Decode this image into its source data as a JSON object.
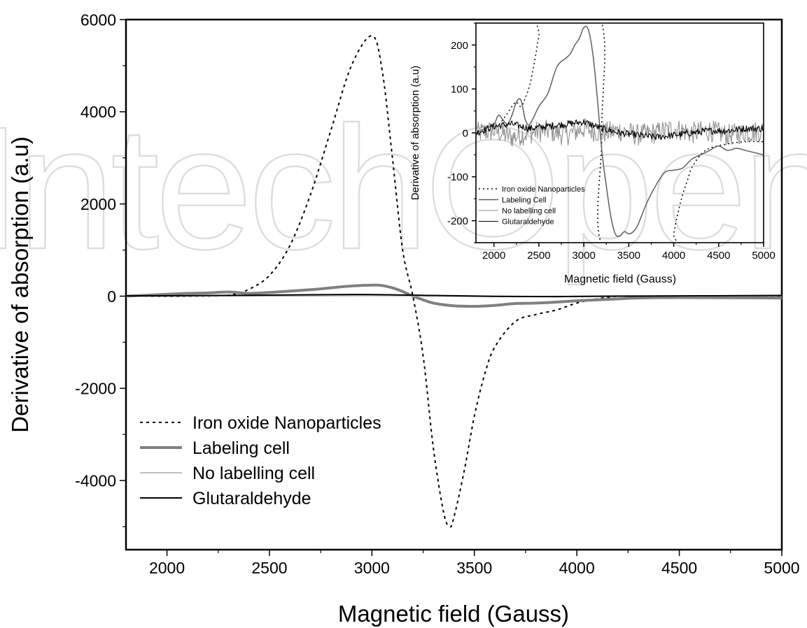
{
  "watermark": {
    "text": "IntechOpen"
  },
  "chart_data": [
    {
      "id": "main",
      "type": "line",
      "xlabel": "Magnetic field (Gauss)",
      "ylabel": "Derivative of absorption (a.u)",
      "xlim": [
        1800,
        5000
      ],
      "ylim": [
        -5500,
        6000
      ],
      "xticks": [
        2000,
        2500,
        3000,
        3500,
        4000,
        4500,
        5000
      ],
      "yticks": [
        -4000,
        -2000,
        0,
        2000,
        4000,
        6000
      ],
      "grid": false,
      "legend_position": "bottom-left",
      "series": [
        {
          "name": "Iron oxide Nanoparticles",
          "style": "dotted",
          "color": "#000000",
          "x": [
            1800,
            2100,
            2300,
            2400,
            2500,
            2600,
            2700,
            2800,
            2900,
            3000,
            3050,
            3100,
            3150,
            3200,
            3250,
            3300,
            3350,
            3380,
            3400,
            3450,
            3500,
            3550,
            3600,
            3700,
            3800,
            3900,
            4000,
            4100,
            4200,
            4300,
            4500,
            5000
          ],
          "y": [
            0,
            0,
            20,
            150,
            450,
            1100,
            2200,
            3600,
            5000,
            5650,
            4900,
            3000,
            1000,
            0,
            -1300,
            -3300,
            -4700,
            -5000,
            -4800,
            -3800,
            -2600,
            -1700,
            -1100,
            -550,
            -400,
            -300,
            -150,
            -60,
            0,
            0,
            0,
            0
          ]
        },
        {
          "name": "Labeling cell",
          "style": "solid-thick",
          "color": "#808080",
          "x": [
            1800,
            1900,
            2000,
            2100,
            2200,
            2300,
            2400,
            2500,
            2600,
            2700,
            2800,
            2900,
            3000,
            3050,
            3100,
            3150,
            3200,
            3250,
            3300,
            3400,
            3500,
            3600,
            3700,
            3800,
            3900,
            4000,
            4100,
            4200,
            4300,
            4500,
            5000
          ],
          "y": [
            0,
            20,
            40,
            60,
            70,
            90,
            60,
            80,
            110,
            140,
            180,
            220,
            240,
            230,
            180,
            100,
            0,
            -80,
            -150,
            -210,
            -220,
            -200,
            -160,
            -150,
            -130,
            -100,
            -80,
            -60,
            -40,
            -30,
            -40
          ]
        },
        {
          "name": "No labelling cell",
          "style": "solid-thin",
          "color": "#c0c0c0",
          "x": [
            1800,
            2200,
            2600,
            3000,
            3400,
            3800,
            4200,
            4600,
            5000
          ],
          "y": [
            0,
            5,
            0,
            10,
            0,
            -10,
            5,
            0,
            10
          ]
        },
        {
          "name": "Glutaraldehyde",
          "style": "solid",
          "color": "#000000",
          "x": [
            1800,
            2100,
            2400,
            2700,
            3000,
            3300,
            3600,
            3900,
            4200,
            4500,
            4800,
            5000
          ],
          "y": [
            5,
            10,
            20,
            30,
            35,
            15,
            -5,
            -10,
            0,
            5,
            10,
            15
          ]
        }
      ]
    },
    {
      "id": "inset",
      "type": "line",
      "xlabel": "Magnetic field (Gauss)",
      "ylabel": "Derivative of absorption (a.u)",
      "xlim": [
        1800,
        5000
      ],
      "ylim": [
        -250,
        250
      ],
      "xticks": [
        2000,
        2500,
        3000,
        3500,
        4000,
        4500,
        5000
      ],
      "yticks": [
        -200,
        -100,
        0,
        100,
        200
      ],
      "grid": false,
      "legend_position": "bottom-left",
      "series": [
        {
          "name": "Iron oxide Nanoparticles",
          "style": "dotted",
          "color": "#000000",
          "x": [
            1800,
            2000,
            2100,
            2200,
            2250,
            2300,
            2350,
            2400,
            2450,
            2500,
            2540,
            3180,
            3200,
            3215,
            3980,
            4000,
            4050,
            4100,
            4150,
            4200,
            4300,
            4400,
            4600,
            4800,
            5000
          ],
          "y": [
            0,
            10,
            30,
            60,
            70,
            60,
            80,
            110,
            160,
            220,
            260,
            260,
            0,
            -260,
            -260,
            -230,
            -180,
            -140,
            -110,
            -80,
            -50,
            -35,
            -25,
            -20,
            -20
          ]
        },
        {
          "name": "Labeling Cell",
          "style": "solid",
          "color": "#606060",
          "x": [
            1800,
            1900,
            2000,
            2050,
            2100,
            2150,
            2200,
            2250,
            2300,
            2350,
            2400,
            2500,
            2600,
            2700,
            2800,
            2850,
            2900,
            2950,
            3000,
            3050,
            3100,
            3150,
            3200,
            3250,
            3300,
            3350,
            3400,
            3450,
            3500,
            3550,
            3600,
            3700,
            3800,
            3900,
            4000,
            4100,
            4200,
            4300,
            4400,
            4500,
            4600,
            4700,
            4800,
            4900,
            5000
          ],
          "y": [
            0,
            10,
            20,
            40,
            30,
            20,
            40,
            70,
            75,
            30,
            20,
            60,
            90,
            150,
            170,
            180,
            200,
            215,
            240,
            235,
            180,
            80,
            -40,
            -120,
            -190,
            -230,
            -235,
            -225,
            -230,
            -225,
            -210,
            -160,
            -120,
            -90,
            -85,
            -80,
            -60,
            -50,
            -40,
            -30,
            -40,
            -35,
            -40,
            -45,
            -50
          ]
        },
        {
          "name": "No labelling cell",
          "style": "noisy",
          "color": "#909090",
          "x": [
            1800,
            2000,
            2200,
            2400,
            2600,
            2800,
            3000,
            3200,
            3400,
            3600,
            3800,
            4000,
            4200,
            4400,
            4600,
            4800,
            5000
          ],
          "y": [
            0,
            5,
            -10,
            0,
            5,
            -5,
            10,
            0,
            5,
            -5,
            0,
            10,
            0,
            5,
            -5,
            0,
            5
          ],
          "noise_amplitude": 25
        },
        {
          "name": "Glutaraldehyde",
          "style": "noisy",
          "color": "#000000",
          "x": [
            1800,
            2000,
            2200,
            2400,
            2600,
            2800,
            3000,
            3200,
            3400,
            3600,
            3800,
            4000,
            4200,
            4400,
            4600,
            4800,
            5000
          ],
          "y": [
            0,
            15,
            20,
            10,
            15,
            20,
            25,
            10,
            0,
            -5,
            -10,
            -5,
            0,
            5,
            5,
            10,
            10
          ],
          "noise_amplitude": 8
        }
      ]
    }
  ]
}
